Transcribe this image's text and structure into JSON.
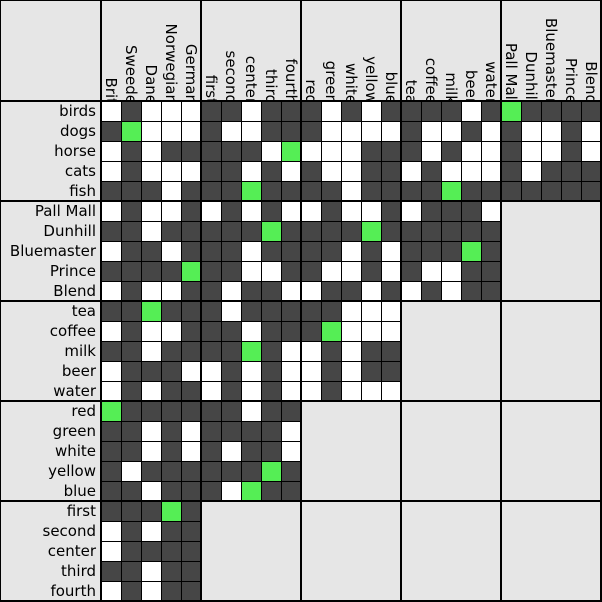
{
  "colors": {
    "empty": "#ffffff",
    "no": "#464646",
    "yes": "#55ee55",
    "background": "#e6e6e6",
    "line": "#000000"
  },
  "col_groups": [
    {
      "name": "nationality",
      "items": [
        "Brit",
        "Sweede",
        "Dane",
        "Norwegian",
        "German"
      ]
    },
    {
      "name": "position",
      "items": [
        "first",
        "second",
        "center",
        "third",
        "fourth"
      ]
    },
    {
      "name": "color",
      "items": [
        "red",
        "green",
        "white",
        "yellow",
        "blue"
      ]
    },
    {
      "name": "drink",
      "items": [
        "tea",
        "coffee",
        "milk",
        "beer",
        "water"
      ]
    },
    {
      "name": "cigar",
      "items": [
        "Pall Mall",
        "Dunhill",
        "Bluemaster",
        "Prince",
        "Blend"
      ]
    }
  ],
  "row_groups": [
    {
      "name": "pet",
      "items": [
        "birds",
        "dogs",
        "horse",
        "cats",
        "fish"
      ],
      "cols": 5
    },
    {
      "name": "cigar",
      "items": [
        "Pall Mall",
        "Dunhill",
        "Bluemaster",
        "Prince",
        "Blend"
      ],
      "cols": 4
    },
    {
      "name": "drink",
      "items": [
        "tea",
        "coffee",
        "milk",
        "beer",
        "water"
      ],
      "cols": 3
    },
    {
      "name": "color",
      "items": [
        "red",
        "green",
        "white",
        "yellow",
        "blue"
      ],
      "cols": 2
    },
    {
      "name": "position",
      "items": [
        "first",
        "second",
        "center",
        "third",
        "fourth"
      ],
      "cols": 1
    }
  ],
  "grid": {
    "legend": "0 = empty, 1 = ruled out, 2 = confirmed",
    "rows": [
      [
        "01000",
        "11011",
        "10101",
        "11101",
        "21111"
      ],
      [
        "12000",
        "10011",
        "10000",
        "10010",
        "10010"
      ],
      [
        "01011",
        "11102",
        "00011",
        "10100",
        "10010"
      ],
      [
        "01000",
        "11010",
        "10011",
        "01000",
        "10111"
      ],
      [
        "11101",
        "11211",
        "11011",
        "11211",
        "11111"
      ],
      [
        "01001",
        "01010",
        "01001",
        "01110",
        "00000"
      ],
      [
        "11011",
        "11121",
        "11121",
        "11111",
        "00000"
      ],
      [
        "01101",
        "11011",
        "11010",
        "11121",
        "00000"
      ],
      [
        "11112",
        "11001",
        "10010",
        "10011",
        "00000"
      ],
      [
        "01001",
        "10110",
        "01101",
        "01011",
        "00000"
      ],
      [
        "11211",
        "10111",
        "11000",
        "00000",
        "00000"
      ],
      [
        "01001",
        "11011",
        "12000",
        "00000",
        "00000"
      ],
      [
        "11011",
        "11210",
        "01011",
        "00000",
        "00000"
      ],
      [
        "01110",
        "01010",
        "01011",
        "00000",
        "00000"
      ],
      [
        "01011",
        "01010",
        "01000",
        "00000",
        "00000"
      ],
      [
        "21111",
        "11011",
        "00000",
        "00000",
        "00000"
      ],
      [
        "11010",
        "11110",
        "00000",
        "00000",
        "00000"
      ],
      [
        "11010",
        "10110",
        "00000",
        "00000",
        "00000"
      ],
      [
        "10111",
        "11121",
        "00000",
        "00000",
        "00000"
      ],
      [
        "11011",
        "10211",
        "00000",
        "00000",
        "00000"
      ],
      [
        "11121",
        "00000",
        "00000",
        "00000",
        "00000"
      ],
      [
        "01011",
        "00000",
        "00000",
        "00000",
        "00000"
      ],
      [
        "01111",
        "00000",
        "00000",
        "00000",
        "00000"
      ],
      [
        "11011",
        "00000",
        "00000",
        "00000",
        "00000"
      ],
      [
        "01011",
        "00000",
        "00000",
        "00000",
        "00000"
      ]
    ]
  }
}
